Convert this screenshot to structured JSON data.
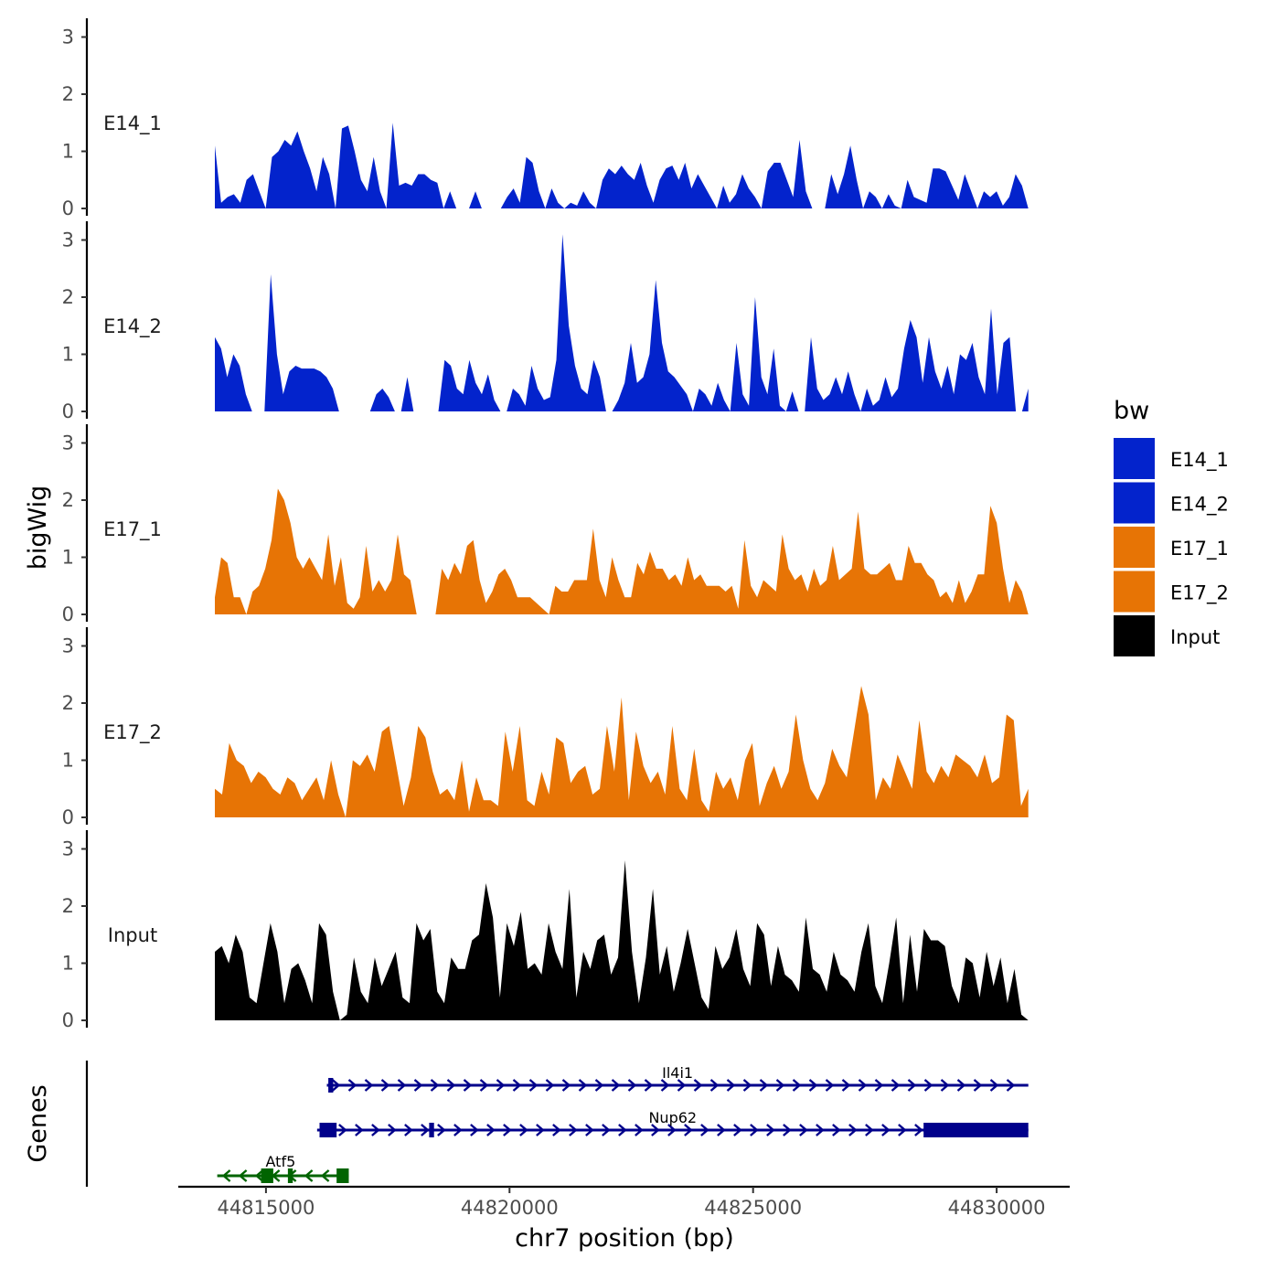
{
  "chart_data": {
    "type": "area",
    "ylabel": "bigWig",
    "xlabel": "chr7 position (bp)",
    "ylim": [
      0,
      3.2
    ],
    "yticks": [
      "0",
      "1",
      "2",
      "3"
    ],
    "xlim": [
      44813200,
      44831500
    ],
    "xticks": [
      {
        "value": 44815000,
        "label": "44815000"
      },
      {
        "value": 44820000,
        "label": "44820000"
      },
      {
        "value": 44825000,
        "label": "44825000"
      },
      {
        "value": 44830000,
        "label": "44830000"
      }
    ],
    "track_range": [
      44813950,
      44830650
    ],
    "legend": {
      "title": "bw",
      "entries": [
        {
          "label": "E14_1",
          "color": "#0323CC"
        },
        {
          "label": "E14_2",
          "color": "#0323CC"
        },
        {
          "label": "E17_1",
          "color": "#E77405"
        },
        {
          "label": "E17_2",
          "color": "#E77405"
        },
        {
          "label": "Input",
          "color": "#000000"
        }
      ]
    },
    "series": [
      {
        "name": "E14_1",
        "label": "E14_1",
        "color": "#0323CC",
        "values": [
          1.1,
          0.1,
          0.2,
          0.25,
          0.1,
          0.5,
          0.6,
          0.3,
          0,
          0.9,
          1.0,
          1.2,
          1.1,
          1.35,
          1.0,
          0.7,
          0.3,
          0.9,
          0.6,
          0,
          1.4,
          1.45,
          1.0,
          0.5,
          0.3,
          0.9,
          0.3,
          0,
          1.5,
          0.4,
          0.45,
          0.4,
          0.6,
          0.6,
          0.5,
          0.45,
          0,
          0.3,
          0,
          0,
          0,
          0.3,
          0,
          0,
          0,
          0,
          0.2,
          0.35,
          0.1,
          0.9,
          0.8,
          0.3,
          0,
          0.35,
          0.1,
          0,
          0.1,
          0.05,
          0.3,
          0.1,
          0,
          0.5,
          0.7,
          0.6,
          0.75,
          0.6,
          0.5,
          0.8,
          0.4,
          0.1,
          0.5,
          0.7,
          0.75,
          0.5,
          0.8,
          0.35,
          0.6,
          0.4,
          0.2,
          0,
          0.4,
          0.1,
          0.25,
          0.6,
          0.35,
          0.2,
          0,
          0.65,
          0.8,
          0.8,
          0.5,
          0.2,
          1.2,
          0.3,
          0,
          0,
          0,
          0.6,
          0.25,
          0.6,
          1.1,
          0.5,
          0,
          0.3,
          0.2,
          0,
          0.25,
          0.05,
          0,
          0.5,
          0.2,
          0.15,
          0.1,
          0.7,
          0.7,
          0.65,
          0.4,
          0.15,
          0.6,
          0.3,
          0,
          0.3,
          0.2,
          0.3,
          0.05,
          0.2,
          0.6,
          0.4,
          0
        ]
      },
      {
        "name": "E14_2",
        "label": "E14_2",
        "color": "#0323CC",
        "values": [
          1.3,
          1.1,
          0.6,
          1.0,
          0.8,
          0.3,
          0,
          0,
          0,
          2.4,
          1.0,
          0.3,
          0.7,
          0.8,
          0.75,
          0.75,
          0.75,
          0.7,
          0.6,
          0.4,
          0,
          0,
          0,
          0,
          0,
          0,
          0.3,
          0.4,
          0.25,
          0,
          0,
          0.6,
          0,
          0,
          0,
          0,
          0,
          0.9,
          0.8,
          0.4,
          0.3,
          0.9,
          0.5,
          0.3,
          0.65,
          0.2,
          0,
          0,
          0.4,
          0.3,
          0.1,
          0.8,
          0.4,
          0.2,
          0.25,
          0.9,
          3.1,
          1.5,
          0.8,
          0.4,
          0.3,
          0.9,
          0.6,
          0,
          0,
          0.2,
          0.5,
          1.2,
          0.5,
          0.6,
          1.0,
          2.3,
          1.2,
          0.7,
          0.6,
          0.45,
          0.3,
          0,
          0.4,
          0.3,
          0.1,
          0.5,
          0.2,
          0,
          1.2,
          0.3,
          0.1,
          2.0,
          0.6,
          0.3,
          1.1,
          0.1,
          0,
          0.35,
          0,
          0,
          1.3,
          0.4,
          0.2,
          0.3,
          0.6,
          0.3,
          0.7,
          0.3,
          0,
          0.4,
          0.1,
          0.2,
          0.6,
          0.25,
          0.4,
          1.1,
          1.6,
          1.3,
          0.5,
          1.3,
          0.7,
          0.4,
          0.8,
          0.3,
          1.0,
          0.9,
          1.2,
          0.6,
          0.3,
          1.8,
          0.3,
          1.2,
          1.3,
          0,
          0,
          0.4
        ]
      },
      {
        "name": "E17_1",
        "label": "E17_1",
        "color": "#E77405",
        "values": [
          0.3,
          1.0,
          0.9,
          0.3,
          0.3,
          0,
          0.4,
          0.5,
          0.8,
          1.3,
          2.2,
          2.0,
          1.6,
          1.0,
          0.8,
          1.0,
          0.8,
          0.6,
          1.4,
          0.5,
          1.0,
          0.2,
          0.1,
          0.3,
          1.2,
          0.4,
          0.6,
          0.4,
          0.6,
          1.4,
          0.7,
          0.6,
          0,
          0,
          0,
          0,
          0.8,
          0.6,
          0.9,
          0.7,
          1.2,
          1.3,
          0.6,
          0.2,
          0.4,
          0.7,
          0.8,
          0.6,
          0.3,
          0.3,
          0.3,
          0.2,
          0.1,
          0,
          0.5,
          0.4,
          0.4,
          0.6,
          0.6,
          0.6,
          1.5,
          0.6,
          0.3,
          1.0,
          0.6,
          0.3,
          0.3,
          0.9,
          0.7,
          1.1,
          0.8,
          0.8,
          0.6,
          0.7,
          0.5,
          1.0,
          0.6,
          0.7,
          0.5,
          0.5,
          0.5,
          0.4,
          0.5,
          0.1,
          1.3,
          0.5,
          0.3,
          0.6,
          0.5,
          0.4,
          1.4,
          0.8,
          0.6,
          0.7,
          0.4,
          0.8,
          0.5,
          0.6,
          1.2,
          0.6,
          0.7,
          0.8,
          1.8,
          0.8,
          0.7,
          0.7,
          0.8,
          0.9,
          0.6,
          0.6,
          1.2,
          0.9,
          0.9,
          0.7,
          0.6,
          0.3,
          0.4,
          0.2,
          0.6,
          0.2,
          0.4,
          0.7,
          0.7,
          1.9,
          1.6,
          0.8,
          0.2,
          0.6,
          0.4,
          0
        ]
      },
      {
        "name": "E17_2",
        "label": "E17_2",
        "color": "#E77405",
        "values": [
          0.5,
          0.4,
          1.3,
          1.0,
          0.9,
          0.6,
          0.8,
          0.7,
          0.5,
          0.4,
          0.7,
          0.6,
          0.3,
          0.5,
          0.7,
          0.3,
          1.0,
          0.4,
          0,
          1.0,
          0.9,
          1.1,
          0.8,
          1.5,
          1.6,
          0.9,
          0.2,
          0.7,
          1.6,
          1.4,
          0.8,
          0.4,
          0.5,
          0.3,
          1.0,
          0.1,
          0.7,
          0.3,
          0.3,
          0.2,
          1.5,
          0.8,
          1.6,
          0.3,
          0.2,
          0.8,
          0.4,
          1.4,
          1.3,
          0.6,
          0.8,
          0.9,
          0.4,
          0.5,
          1.6,
          0.8,
          2.1,
          0.3,
          1.5,
          0.9,
          0.6,
          0.8,
          0.4,
          1.6,
          0.5,
          0.3,
          1.2,
          0.3,
          0.1,
          0.8,
          0.5,
          0.7,
          0.3,
          1.0,
          1.3,
          0.2,
          0.6,
          0.9,
          0.5,
          0.8,
          1.8,
          1.0,
          0.5,
          0.3,
          0.6,
          1.2,
          0.9,
          0.7,
          1.5,
          2.3,
          1.8,
          0.3,
          0.7,
          0.5,
          1.1,
          0.8,
          0.5,
          1.7,
          0.8,
          0.6,
          0.9,
          0.7,
          1.1,
          1.0,
          0.9,
          0.7,
          1.1,
          0.6,
          0.7,
          1.8,
          1.7,
          0.2,
          0.5
        ]
      },
      {
        "name": "Input",
        "label": "Input",
        "color": "#000000",
        "values": [
          1.2,
          1.3,
          1.0,
          1.5,
          1.2,
          0.4,
          0.3,
          1.0,
          1.7,
          1.2,
          0.3,
          0.9,
          1.0,
          0.7,
          0.3,
          1.7,
          1.5,
          0.5,
          0,
          0.1,
          1.1,
          0.5,
          0.3,
          1.1,
          0.6,
          0.9,
          1.2,
          0.4,
          0.3,
          1.7,
          1.4,
          1.6,
          0.5,
          0.3,
          1.1,
          0.9,
          0.9,
          1.4,
          1.5,
          2.4,
          1.8,
          0.4,
          1.7,
          1.3,
          1.9,
          0.9,
          1.0,
          0.8,
          1.7,
          1.2,
          0.9,
          2.3,
          0.4,
          1.2,
          0.9,
          1.4,
          1.5,
          0.8,
          1.1,
          2.8,
          1.2,
          0.3,
          1.1,
          2.3,
          0.8,
          1.3,
          0.5,
          1.0,
          1.6,
          1.0,
          0.4,
          0.2,
          1.3,
          0.9,
          1.1,
          1.6,
          0.9,
          0.6,
          1.7,
          1.5,
          0.6,
          1.3,
          0.8,
          0.7,
          0.5,
          1.8,
          0.9,
          0.8,
          0.5,
          1.2,
          0.8,
          0.7,
          0.5,
          1.2,
          1.7,
          0.6,
          0.3,
          1.0,
          1.8,
          0.3,
          1.5,
          0.5,
          1.6,
          1.4,
          1.4,
          1.3,
          0.6,
          0.3,
          1.1,
          1.0,
          0.4,
          1.2,
          0.6,
          1.1,
          0.3,
          0.9,
          0.1,
          0
        ]
      }
    ],
    "genes_track_label": "Genes",
    "genes": [
      {
        "name": "Il4i1",
        "strand": "+",
        "start": 44816250,
        "end": 44830650,
        "color": "#00008B",
        "exons": [
          {
            "start": 44816280,
            "end": 44816380
          }
        ]
      },
      {
        "name": "Nup62",
        "strand": "+",
        "start": 44816050,
        "end": 44830650,
        "color": "#00008B",
        "exons": [
          {
            "start": 44816100,
            "end": 44816450
          },
          {
            "start": 44818350,
            "end": 44818450
          },
          {
            "start": 44828500,
            "end": 44830650
          }
        ]
      },
      {
        "name": "Atf5",
        "strand": "-",
        "start": 44814000,
        "end": 44816700,
        "color": "#006400",
        "exons": [
          {
            "start": 44814900,
            "end": 44815150
          },
          {
            "start": 44815450,
            "end": 44815550
          },
          {
            "start": 44816450,
            "end": 44816700
          }
        ]
      }
    ]
  }
}
